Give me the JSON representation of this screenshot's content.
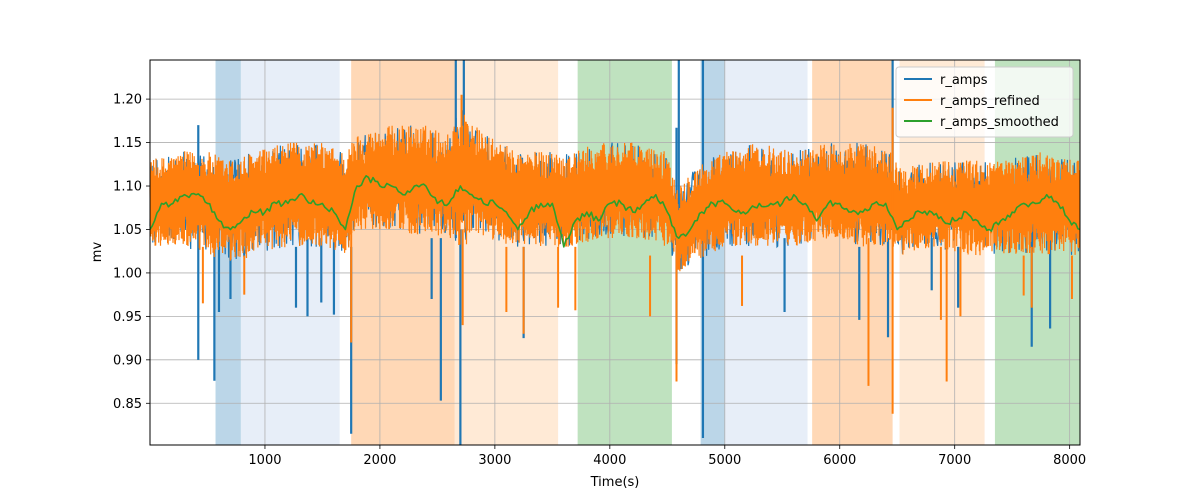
{
  "chart_data": {
    "type": "line",
    "title": "",
    "xlabel": "Time(s)",
    "ylabel": "mv",
    "xlim": [
      0,
      8090
    ],
    "ylim": [
      0.802,
      1.245
    ],
    "xticks": [
      1000,
      2000,
      3000,
      4000,
      5000,
      6000,
      7000,
      8000
    ],
    "yticks": [
      0.85,
      0.9,
      0.95,
      1.0,
      1.05,
      1.1,
      1.15,
      1.2
    ],
    "ytick_labels": [
      "0.85",
      "0.90",
      "0.95",
      "1.00",
      "1.05",
      "1.10",
      "1.15",
      "1.20"
    ],
    "grid": true,
    "legend_position": "upper right",
    "spans": [
      {
        "x0": 570,
        "x1": 790,
        "color": "#1f77b4",
        "alpha": 0.3
      },
      {
        "x0": 790,
        "x1": 1650,
        "color": "#aec7e8",
        "alpha": 0.3
      },
      {
        "x0": 1750,
        "x1": 2650,
        "color": "#ff7f0e",
        "alpha": 0.3
      },
      {
        "x0": 2650,
        "x1": 3550,
        "color": "#ffbb78",
        "alpha": 0.3
      },
      {
        "x0": 3720,
        "x1": 4540,
        "color": "#2ca02c",
        "alpha": 0.3
      },
      {
        "x0": 4790,
        "x1": 5000,
        "color": "#1f77b4",
        "alpha": 0.3
      },
      {
        "x0": 5000,
        "x1": 5720,
        "color": "#aec7e8",
        "alpha": 0.3
      },
      {
        "x0": 5760,
        "x1": 6460,
        "color": "#ff7f0e",
        "alpha": 0.3
      },
      {
        "x0": 6520,
        "x1": 7260,
        "color": "#ffbb78",
        "alpha": 0.3
      },
      {
        "x0": 7350,
        "x1": 8090,
        "color": "#2ca02c",
        "alpha": 0.3
      }
    ],
    "series": [
      {
        "name": "r_amps",
        "color": "#1f77b4",
        "spikes": [
          [
            420,
            1.17,
            0.9
          ],
          [
            560,
            1.04,
            0.876
          ],
          [
            600,
            1.03,
            0.955
          ],
          [
            700,
            1.04,
            0.97
          ],
          [
            1270,
            1.03,
            0.96
          ],
          [
            1370,
            1.04,
            0.95
          ],
          [
            1490,
            1.04,
            0.966
          ],
          [
            1600,
            1.04,
            0.952
          ],
          [
            1750,
            1.03,
            0.815
          ],
          [
            2450,
            1.04,
            0.97
          ],
          [
            2530,
            1.04,
            0.853
          ],
          [
            2660,
            1.245,
            1.04
          ],
          [
            2700,
            1.05,
            0.802
          ],
          [
            2730,
            1.245,
            1.06
          ],
          [
            3250,
            1.03,
            0.925
          ],
          [
            4580,
            1.167,
            1.05
          ],
          [
            4580,
            1.03,
            0.895
          ],
          [
            4600,
            1.245,
            1.06
          ],
          [
            4810,
            1.245,
            1.06
          ],
          [
            4810,
            1.04,
            0.81
          ],
          [
            5520,
            1.04,
            0.955
          ],
          [
            6170,
            1.03,
            0.946
          ],
          [
            6420,
            1.04,
            0.926
          ],
          [
            6460,
            1.245,
            1.07
          ],
          [
            6800,
            1.04,
            0.98
          ],
          [
            7030,
            1.03,
            0.96
          ],
          [
            7670,
            1.04,
            0.915
          ],
          [
            7830,
            1.04,
            0.936
          ]
        ]
      },
      {
        "name": "r_amps_refined",
        "color": "#ff7f0e",
        "band": [
          [
            0,
            1.03,
            1.13
          ],
          [
            300,
            1.03,
            1.14
          ],
          [
            500,
            1.02,
            1.14
          ],
          [
            700,
            1.01,
            1.13
          ],
          [
            900,
            1.02,
            1.14
          ],
          [
            1200,
            1.03,
            1.15
          ],
          [
            1500,
            1.03,
            1.15
          ],
          [
            1700,
            1.02,
            1.14
          ],
          [
            1800,
            1.05,
            1.16
          ],
          [
            2100,
            1.05,
            1.17
          ],
          [
            2400,
            1.04,
            1.17
          ],
          [
            2600,
            1.04,
            1.16
          ],
          [
            2700,
            1.03,
            1.19
          ],
          [
            2900,
            1.04,
            1.16
          ],
          [
            3200,
            1.03,
            1.14
          ],
          [
            3500,
            1.03,
            1.14
          ],
          [
            3700,
            1.03,
            1.14
          ],
          [
            3900,
            1.04,
            1.15
          ],
          [
            4200,
            1.04,
            1.15
          ],
          [
            4500,
            1.03,
            1.14
          ],
          [
            4600,
            1.0,
            1.1
          ],
          [
            4700,
            1.01,
            1.12
          ],
          [
            5000,
            1.03,
            1.14
          ],
          [
            5300,
            1.03,
            1.15
          ],
          [
            5600,
            1.03,
            1.14
          ],
          [
            5900,
            1.04,
            1.15
          ],
          [
            6200,
            1.03,
            1.15
          ],
          [
            6450,
            1.03,
            1.14
          ],
          [
            6550,
            1.02,
            1.12
          ],
          [
            6800,
            1.03,
            1.13
          ],
          [
            7100,
            1.02,
            1.13
          ],
          [
            7400,
            1.02,
            1.13
          ],
          [
            7700,
            1.02,
            1.14
          ],
          [
            8090,
            1.02,
            1.13
          ]
        ],
        "spikes": [
          [
            2710,
            1.205,
            1.07
          ],
          [
            1750,
            1.06,
            0.92
          ],
          [
            2720,
            1.05,
            0.94
          ],
          [
            3250,
            1.03,
            0.93
          ],
          [
            4580,
            1.04,
            0.875
          ],
          [
            6460,
            1.19,
            1.05
          ],
          [
            6460,
            1.04,
            0.838
          ],
          [
            6250,
            1.04,
            0.87
          ],
          [
            6930,
            1.04,
            0.875
          ],
          [
            460,
            1.03,
            0.965
          ],
          [
            820,
            1.02,
            0.975
          ],
          [
            3100,
            1.03,
            0.955
          ],
          [
            3550,
            1.03,
            0.96
          ],
          [
            3700,
            1.03,
            0.957
          ],
          [
            4350,
            1.02,
            0.95
          ],
          [
            5150,
            1.02,
            0.962
          ],
          [
            6880,
            1.03,
            0.946
          ],
          [
            7050,
            1.03,
            0.95
          ],
          [
            7670,
            1.03,
            0.96
          ],
          [
            7600,
            1.02,
            0.974
          ],
          [
            8020,
            1.02,
            0.97
          ]
        ]
      },
      {
        "name": "r_amps_smoothed",
        "color": "#2ca02c",
        "x": [
          0,
          100,
          200,
          300,
          400,
          500,
          600,
          700,
          800,
          900,
          1000,
          1100,
          1200,
          1300,
          1400,
          1500,
          1600,
          1700,
          1800,
          1900,
          2000,
          2100,
          2200,
          2300,
          2400,
          2500,
          2600,
          2700,
          2800,
          2900,
          3000,
          3100,
          3200,
          3300,
          3400,
          3500,
          3600,
          3700,
          3800,
          3900,
          4000,
          4100,
          4200,
          4300,
          4400,
          4500,
          4600,
          4700,
          4800,
          4900,
          5000,
          5100,
          5200,
          5300,
          5400,
          5500,
          5600,
          5700,
          5800,
          5900,
          6000,
          6100,
          6200,
          6300,
          6400,
          6500,
          6600,
          6700,
          6800,
          6900,
          7000,
          7100,
          7200,
          7300,
          7400,
          7500,
          7600,
          7700,
          7800,
          7900,
          8000,
          8090
        ],
        "y": [
          1.05,
          1.08,
          1.08,
          1.09,
          1.09,
          1.08,
          1.06,
          1.05,
          1.06,
          1.07,
          1.07,
          1.08,
          1.08,
          1.09,
          1.08,
          1.08,
          1.07,
          1.05,
          1.1,
          1.11,
          1.1,
          1.1,
          1.09,
          1.1,
          1.1,
          1.08,
          1.08,
          1.1,
          1.09,
          1.08,
          1.08,
          1.07,
          1.05,
          1.07,
          1.08,
          1.08,
          1.03,
          1.06,
          1.07,
          1.06,
          1.08,
          1.08,
          1.07,
          1.08,
          1.09,
          1.07,
          1.04,
          1.05,
          1.07,
          1.08,
          1.08,
          1.07,
          1.07,
          1.08,
          1.08,
          1.08,
          1.09,
          1.08,
          1.06,
          1.08,
          1.08,
          1.07,
          1.07,
          1.08,
          1.08,
          1.05,
          1.06,
          1.07,
          1.07,
          1.06,
          1.06,
          1.07,
          1.06,
          1.05,
          1.06,
          1.07,
          1.08,
          1.08,
          1.09,
          1.08,
          1.06,
          1.05
        ]
      }
    ]
  }
}
